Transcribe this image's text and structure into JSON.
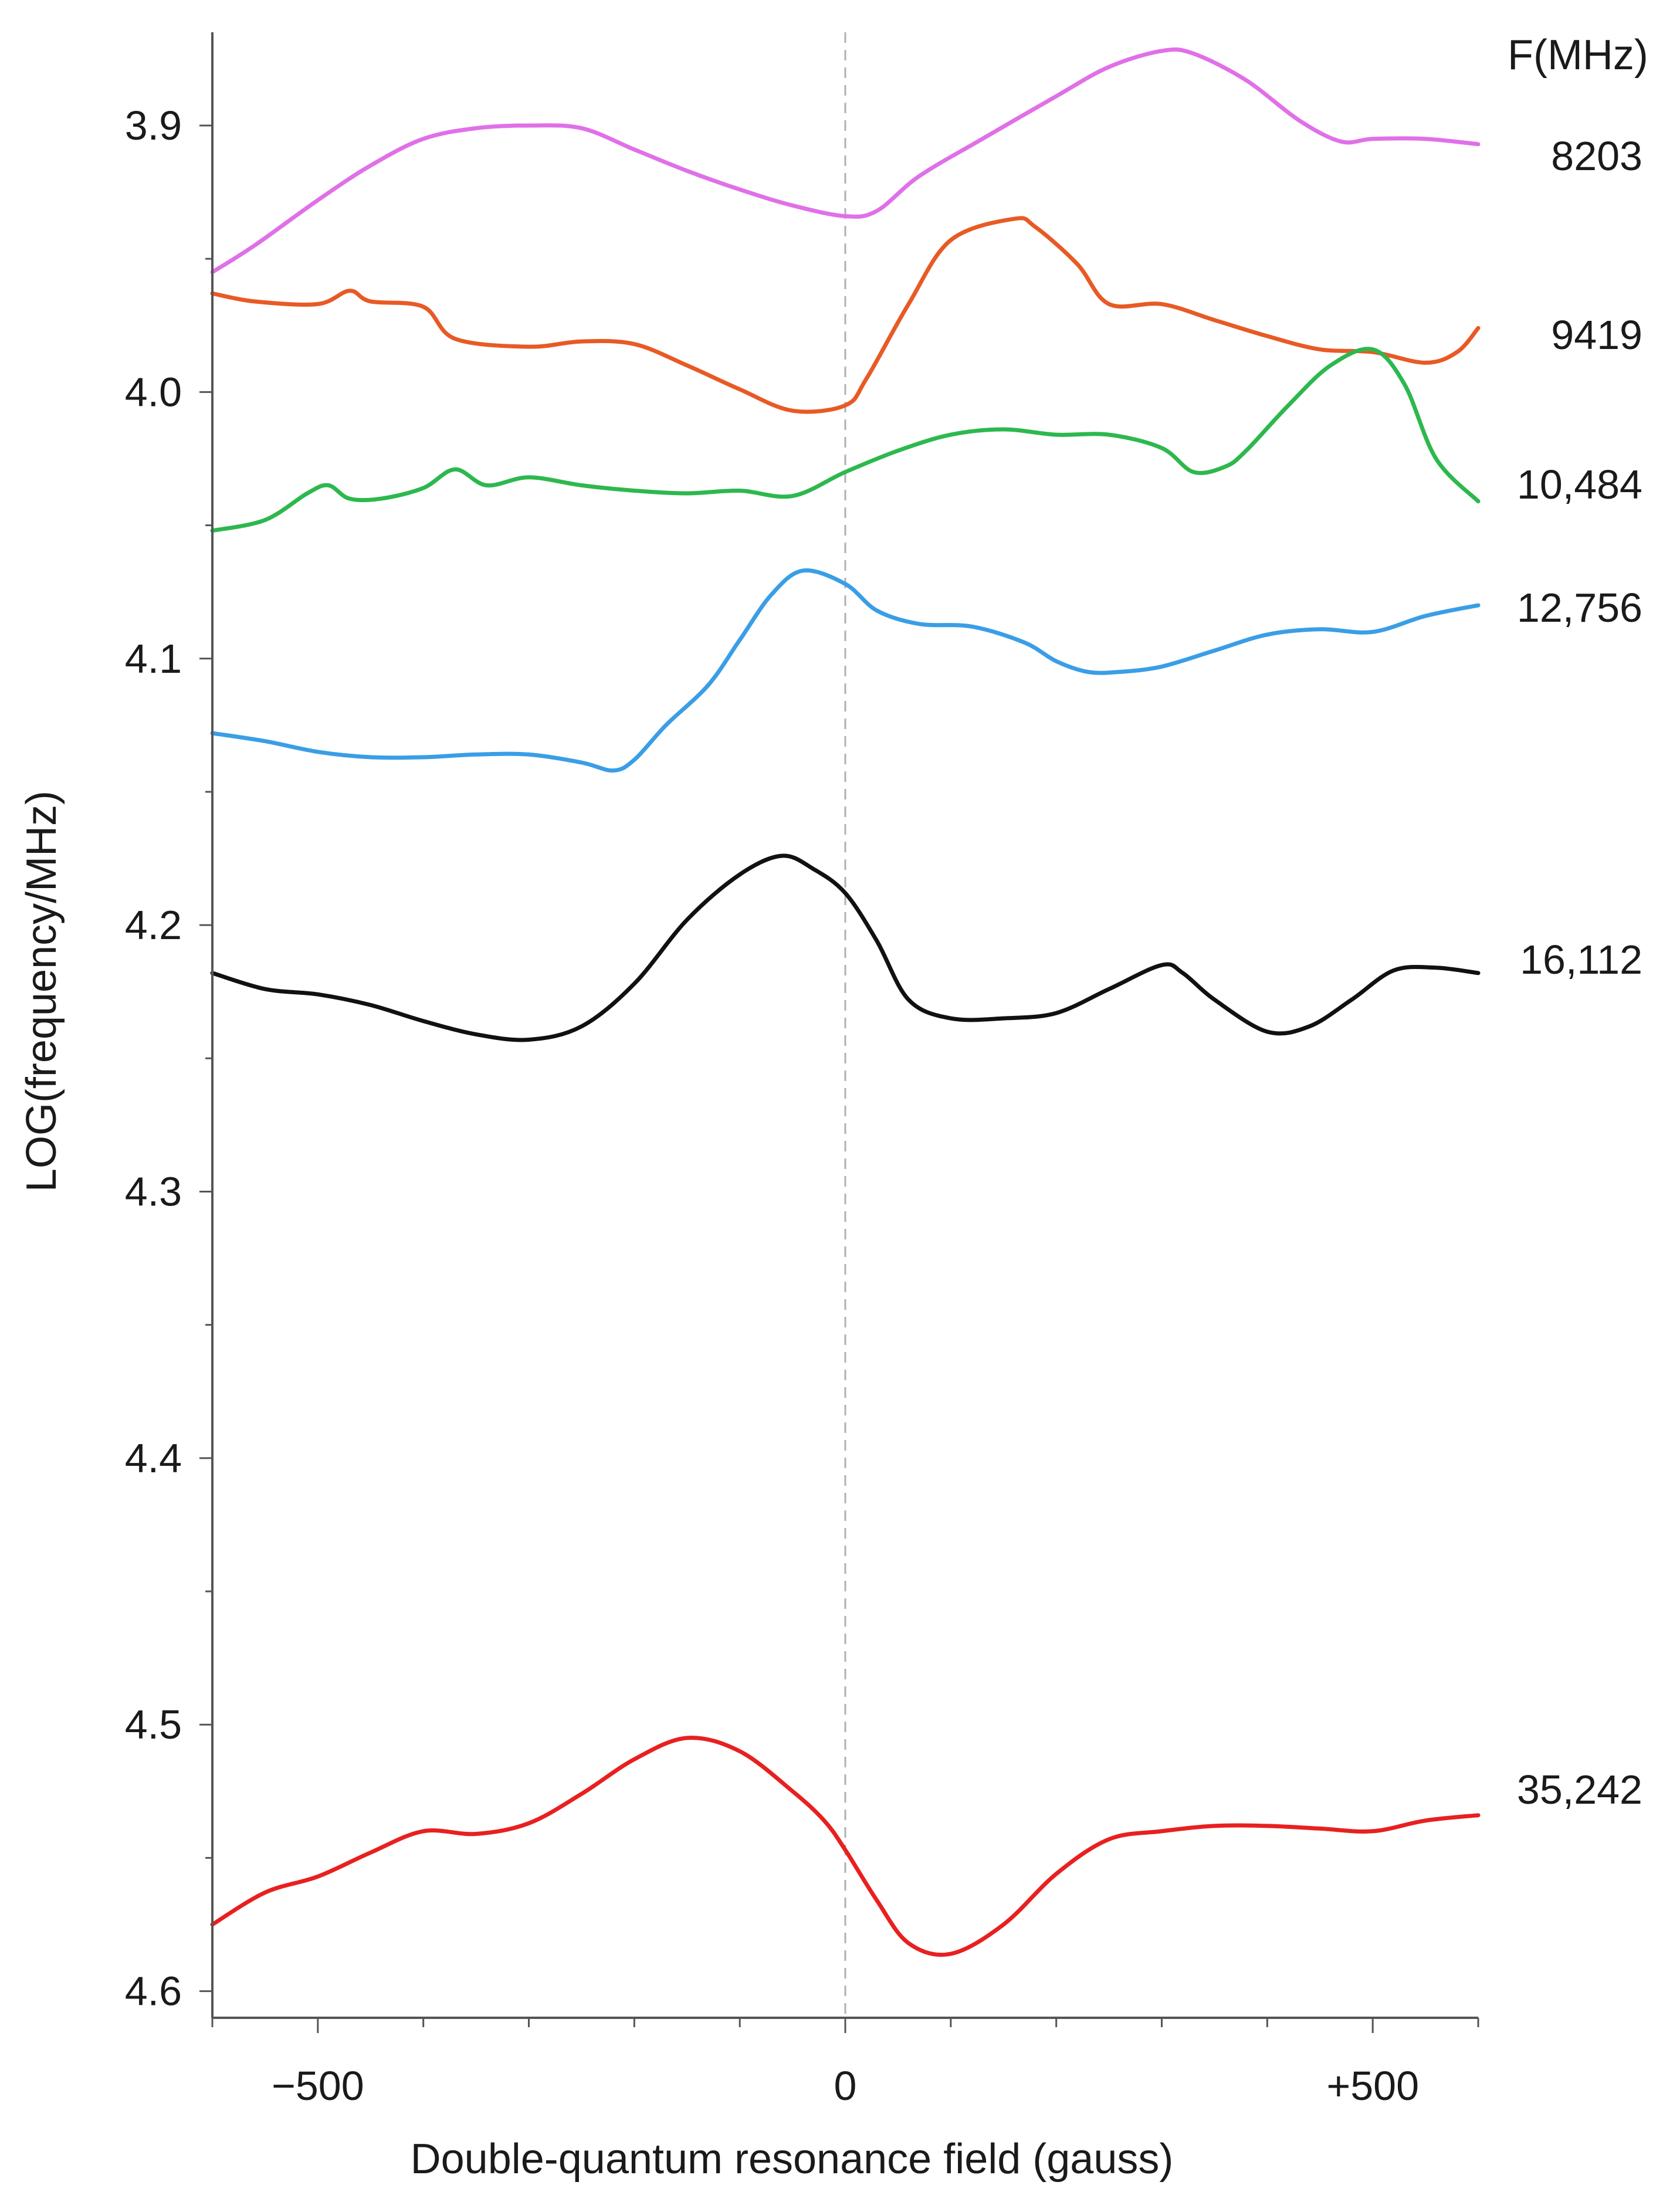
{
  "chart_data": {
    "type": "line",
    "title": "",
    "xlabel": "Double-quantum resonance field (gauss)",
    "ylabel": "LOG(frequency/MHz)",
    "xlim": [
      -600,
      600
    ],
    "ylim": [
      3.865,
      4.61
    ],
    "y_inverted": true,
    "x_ticks": [
      {
        "value": -500,
        "label": "−500"
      },
      {
        "value": 0,
        "label": "0"
      },
      {
        "value": 500,
        "label": "+500"
      }
    ],
    "x_minor_ticks": [
      -600,
      -400,
      -300,
      -200,
      -100,
      100,
      200,
      300,
      400,
      600
    ],
    "y_ticks": [
      {
        "value": 3.9,
        "label": "3.9"
      },
      {
        "value": 4.0,
        "label": "4.0"
      },
      {
        "value": 4.1,
        "label": "4.1"
      },
      {
        "value": 4.2,
        "label": "4.2"
      },
      {
        "value": 4.3,
        "label": "4.3"
      },
      {
        "value": 4.4,
        "label": "4.4"
      },
      {
        "value": 4.5,
        "label": "4.5"
      },
      {
        "value": 4.6,
        "label": "4.6"
      }
    ],
    "y_minor_ticks": [
      3.95,
      4.05,
      4.15,
      4.25,
      4.35,
      4.45,
      4.55
    ],
    "zero_line": {
      "x": 0,
      "style": "dashed",
      "color": "#b0b0b0"
    },
    "legend_header": "F(MHz)",
    "series": [
      {
        "name": "8203",
        "color": "#e070e8",
        "x": [
          -600,
          -560,
          -500,
          -450,
          -400,
          -350,
          -300,
          -250,
          -200,
          -150,
          -100,
          -50,
          0,
          30,
          70,
          130,
          200,
          250,
          300,
          330,
          380,
          430,
          470,
          500,
          550,
          600
        ],
        "y": [
          3.955,
          3.945,
          3.928,
          3.915,
          3.905,
          3.901,
          3.9,
          3.901,
          3.909,
          3.917,
          3.924,
          3.93,
          3.934,
          3.932,
          3.919,
          3.905,
          3.889,
          3.878,
          3.872,
          3.873,
          3.883,
          3.898,
          3.906,
          3.905,
          3.905,
          3.907
        ]
      },
      {
        "name": "9419",
        "color": "#e85a25",
        "x": [
          -600,
          -560,
          -500,
          -470,
          -450,
          -400,
          -370,
          -300,
          -250,
          -200,
          -150,
          -100,
          -50,
          0,
          20,
          60,
          100,
          160,
          180,
          220,
          250,
          300,
          350,
          400,
          450,
          500,
          550,
          580,
          600
        ],
        "y": [
          3.963,
          3.966,
          3.967,
          3.962,
          3.966,
          3.968,
          3.98,
          3.983,
          3.981,
          3.982,
          3.99,
          3.999,
          4.007,
          4.005,
          3.995,
          3.967,
          3.943,
          3.935,
          3.938,
          3.952,
          3.967,
          3.967,
          3.973,
          3.979,
          3.984,
          3.985,
          3.989,
          3.985,
          3.976
        ]
      },
      {
        "name": "10,484",
        "color": "#2db84e",
        "x": [
          -600,
          -550,
          -510,
          -490,
          -470,
          -440,
          -400,
          -370,
          -340,
          -300,
          -250,
          -200,
          -150,
          -100,
          -50,
          0,
          50,
          100,
          150,
          200,
          250,
          300,
          330,
          360,
          380,
          420,
          460,
          500,
          530,
          560,
          600
        ],
        "y": [
          4.052,
          4.048,
          4.038,
          4.035,
          4.04,
          4.04,
          4.036,
          4.029,
          4.035,
          4.032,
          4.035,
          4.037,
          4.038,
          4.037,
          4.039,
          4.03,
          4.022,
          4.016,
          4.014,
          4.016,
          4.016,
          4.021,
          4.03,
          4.028,
          4.022,
          4.005,
          3.99,
          3.984,
          3.997,
          4.025,
          4.041
        ]
      },
      {
        "name": "12,756",
        "color": "#3a9ee6",
        "x": [
          -600,
          -550,
          -500,
          -450,
          -400,
          -350,
          -300,
          -250,
          -220,
          -200,
          -170,
          -130,
          -100,
          -70,
          -40,
          0,
          30,
          70,
          120,
          170,
          200,
          230,
          260,
          300,
          350,
          400,
          450,
          500,
          550,
          600
        ],
        "y": [
          4.128,
          4.131,
          4.135,
          4.137,
          4.137,
          4.136,
          4.136,
          4.139,
          4.142,
          4.138,
          4.125,
          4.11,
          4.093,
          4.076,
          4.067,
          4.072,
          4.082,
          4.087,
          4.088,
          4.094,
          4.101,
          4.105,
          4.105,
          4.103,
          4.097,
          4.091,
          4.089,
          4.09,
          4.084,
          4.08
        ]
      },
      {
        "name": "16,112",
        "color": "#111111",
        "x": [
          -600,
          -550,
          -500,
          -450,
          -400,
          -350,
          -300,
          -250,
          -200,
          -150,
          -100,
          -60,
          -30,
          0,
          30,
          60,
          100,
          150,
          200,
          250,
          300,
          320,
          350,
          400,
          440,
          480,
          520,
          560,
          600
        ],
        "y": [
          4.218,
          4.224,
          4.226,
          4.23,
          4.236,
          4.241,
          4.243,
          4.238,
          4.222,
          4.198,
          4.181,
          4.174,
          4.179,
          4.188,
          4.206,
          4.228,
          4.235,
          4.235,
          4.233,
          4.224,
          4.215,
          4.218,
          4.228,
          4.24,
          4.238,
          4.228,
          4.217,
          4.216,
          4.218
        ]
      },
      {
        "name": "35,242",
        "color": "#e82020",
        "x": [
          -600,
          -550,
          -500,
          -450,
          -400,
          -350,
          -300,
          -250,
          -200,
          -150,
          -100,
          -50,
          -20,
          0,
          30,
          60,
          100,
          150,
          200,
          250,
          300,
          350,
          400,
          450,
          500,
          550,
          600
        ],
        "y": [
          4.575,
          4.563,
          4.557,
          4.548,
          4.54,
          4.541,
          4.537,
          4.526,
          4.513,
          4.505,
          4.51,
          4.525,
          4.536,
          4.547,
          4.566,
          4.582,
          4.586,
          4.575,
          4.556,
          4.543,
          4.54,
          4.538,
          4.538,
          4.539,
          4.54,
          4.536,
          4.534
        ]
      }
    ]
  }
}
